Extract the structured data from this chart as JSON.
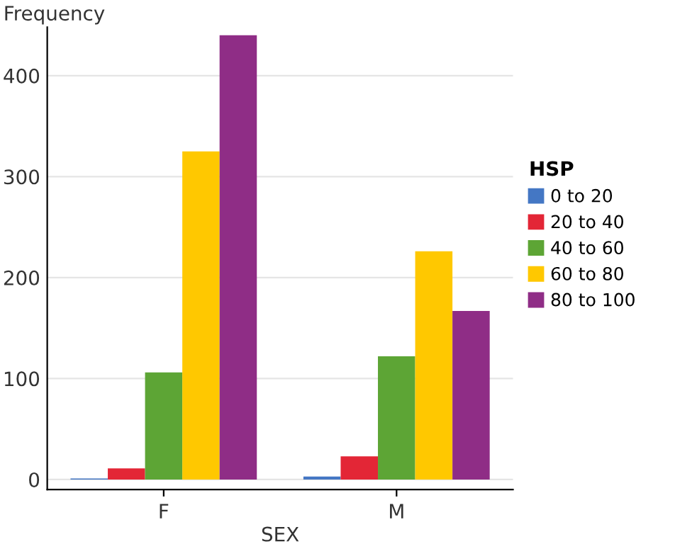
{
  "chart_data": {
    "type": "bar",
    "xlabel": "SEX",
    "ylabel": "Frequency",
    "legend_title": "HSP",
    "categories": [
      "F",
      "M"
    ],
    "series": [
      {
        "name": "0 to 20",
        "color": "#4477c4",
        "values": [
          1,
          3
        ]
      },
      {
        "name": "20 to 40",
        "color": "#e32636",
        "values": [
          11,
          23
        ]
      },
      {
        "name": "40 to 60",
        "color": "#5da535",
        "values": [
          106,
          122
        ]
      },
      {
        "name": "60 to 80",
        "color": "#ffc800",
        "values": [
          325,
          226
        ]
      },
      {
        "name": "80 to 100",
        "color": "#8f2d86",
        "values": [
          440,
          167
        ]
      }
    ],
    "ylim": [
      -10,
      448
    ],
    "yticks": [
      0,
      100,
      200,
      300,
      400
    ],
    "grid": "y",
    "legend": "right"
  }
}
